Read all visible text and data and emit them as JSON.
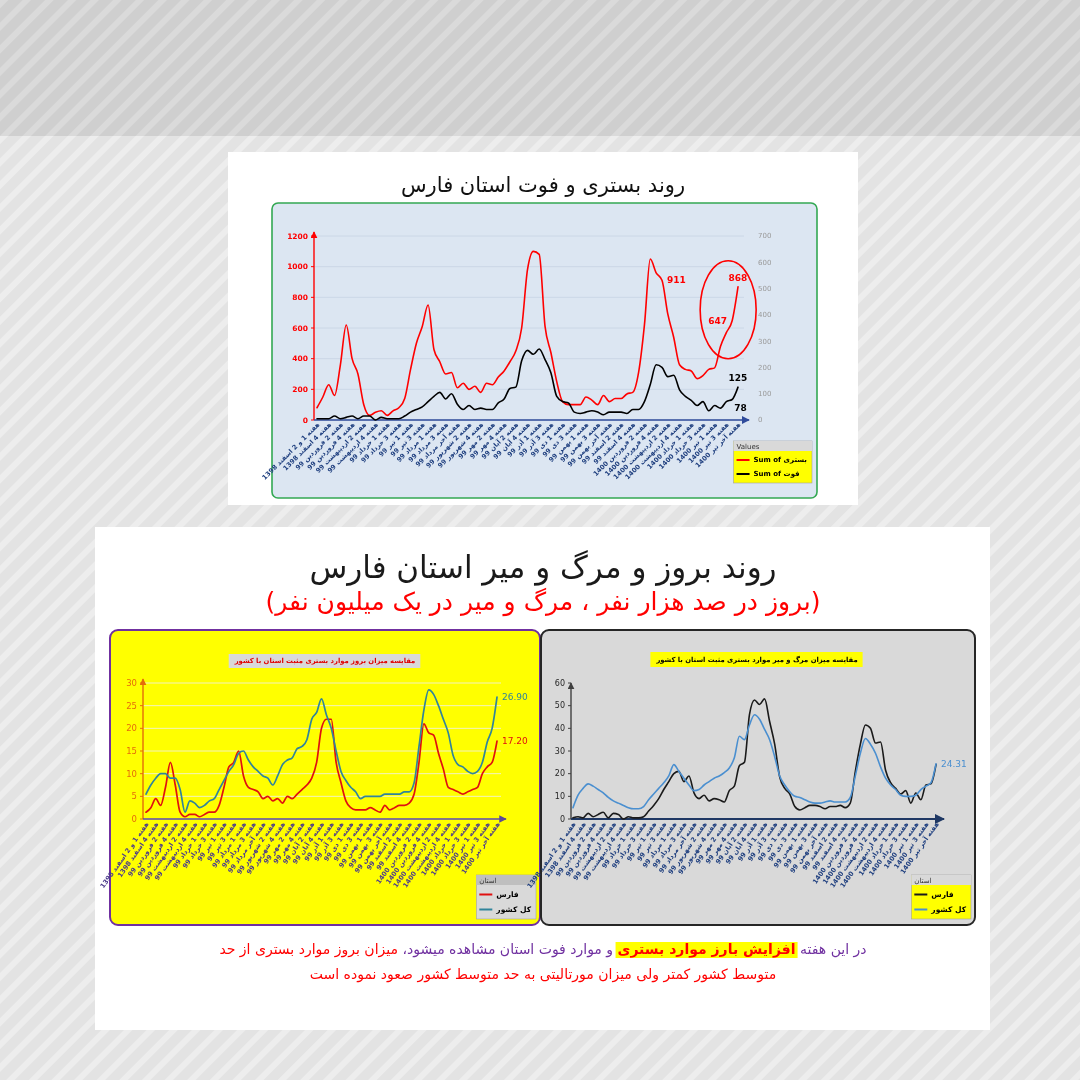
{
  "chart_data": [
    {
      "type": "line",
      "title": "روند بستری و فوت استان فارس",
      "categories": [
        "هفته 1 و 2 اسفند 1398",
        null,
        "هفته 4 اسفند 1398",
        null,
        "هفته 2 فروردین 99",
        null,
        "هفته 4 فروردین 99",
        null,
        "هفته 2 اردیبهشت 99",
        null,
        "هفته 4 اردیبهشت 99",
        null,
        "هفته 1 خرداد 99",
        null,
        "هفته 3 خرداد 99",
        null,
        "هفته 1 تیر 99",
        null,
        "هفته 3 تیر 99",
        null,
        "هفته 1 مرداد 99",
        null,
        "هفته 3 مرداد 99",
        null,
        "هفته آخر مرداد 99",
        null,
        "هفته 2 شهریور 99",
        null,
        "هفته 4 شهریور 99",
        null,
        "هفته 2 مهر 99",
        null,
        "هفته 4 مهر 99",
        null,
        "هفته 2 آبان 99",
        null,
        "هفته 4 آبان 99",
        null,
        "هفته 1 آذر 99",
        null,
        "هفته 3 آذر 99",
        null,
        "هفته 1 دی 99",
        null,
        "هفته 3 دی 99",
        null,
        "هفته 1 بهمن 99",
        null,
        "هفته 3 بهمن 99",
        null,
        "هفته آخر بهمن 99",
        null,
        "هفته 2 اسفند 99",
        null,
        "هفته 4 اسفند 99",
        null,
        "هفته 2 فروردین 1400",
        null,
        "هفته 4 فروردین 1400",
        null,
        "هفته 2 اردیبهشت 1400",
        null,
        "هفته 4 اردیبهشت 1400",
        null,
        "هفته 1 خرداد 1400",
        null,
        "هفته 3 خرداد 1400",
        null,
        "هفته 1 تیر 1400",
        null,
        "هفته 3 تیر 1400",
        null,
        "هفته آخر تیر 1400"
      ],
      "series": [
        {
          "name": "Sum of بستری",
          "color": "#ff0000",
          "values": [
            80,
            150,
            230,
            160,
            360,
            620,
            400,
            300,
            100,
            30,
            50,
            60,
            30,
            60,
            80,
            140,
            330,
            500,
            610,
            750,
            460,
            380,
            300,
            310,
            210,
            240,
            200,
            220,
            180,
            240,
            230,
            280,
            320,
            380,
            450,
            600,
            980,
            1100,
            1080,
            610,
            440,
            250,
            120,
            100,
            100,
            100,
            150,
            130,
            100,
            160,
            120,
            140,
            140,
            170,
            180,
            310,
            620,
            1050,
            960,
            911,
            690,
            540,
            360,
            330,
            320,
            270,
            290,
            330,
            340,
            480,
            570,
            647,
            868
          ],
          "value_labels": [
            null,
            null,
            null,
            null,
            null,
            null,
            null,
            null,
            null,
            null,
            null,
            null,
            null,
            null,
            null,
            null,
            null,
            null,
            null,
            null,
            null,
            null,
            null,
            null,
            null,
            null,
            null,
            null,
            null,
            null,
            null,
            null,
            null,
            null,
            null,
            null,
            null,
            null,
            null,
            null,
            null,
            null,
            null,
            null,
            null,
            null,
            null,
            null,
            null,
            null,
            null,
            null,
            null,
            null,
            null,
            null,
            null,
            null,
            null,
            "911",
            null,
            null,
            null,
            null,
            null,
            null,
            null,
            null,
            null,
            null,
            null,
            "647",
            "868"
          ]
        },
        {
          "name": "Sum of فوت",
          "color": "#000000",
          "axis": "y2",
          "values": [
            5,
            5,
            5,
            15,
            5,
            10,
            15,
            5,
            15,
            15,
            0,
            10,
            5,
            5,
            5,
            15,
            30,
            40,
            50,
            70,
            90,
            105,
            80,
            100,
            60,
            40,
            55,
            40,
            45,
            40,
            40,
            65,
            80,
            120,
            125,
            225,
            265,
            250,
            270,
            230,
            180,
            90,
            70,
            65,
            30,
            25,
            30,
            35,
            30,
            20,
            30,
            30,
            30,
            25,
            40,
            40,
            70,
            135,
            210,
            200,
            165,
            170,
            115,
            90,
            75,
            55,
            70,
            35,
            55,
            45,
            70,
            78,
            125
          ],
          "value_labels": [
            null,
            null,
            null,
            null,
            null,
            null,
            null,
            null,
            null,
            null,
            null,
            null,
            null,
            null,
            null,
            null,
            null,
            null,
            null,
            null,
            null,
            null,
            null,
            null,
            null,
            null,
            null,
            null,
            null,
            null,
            null,
            null,
            null,
            null,
            null,
            null,
            null,
            null,
            null,
            null,
            null,
            null,
            null,
            null,
            null,
            null,
            null,
            null,
            null,
            null,
            null,
            null,
            null,
            null,
            null,
            null,
            null,
            null,
            null,
            null,
            null,
            null,
            null,
            null,
            null,
            null,
            null,
            null,
            null,
            null,
            null,
            "78",
            "125"
          ]
        }
      ],
      "ylim": [
        0,
        1200
      ],
      "yticks": [
        0,
        200,
        400,
        600,
        800,
        1000,
        1200
      ],
      "y2lim": [
        0,
        700
      ],
      "y2ticks": [
        0,
        100,
        200,
        300,
        400,
        500,
        600,
        700
      ],
      "grid": "y",
      "legend": "bottom right",
      "legend_title": "Values",
      "line_style": "solid"
    },
    {
      "type": "other",
      "title": "روند بروز و مرگ و میر استان فارس",
      "subtitle": "(بروز در صد هزار نفر ، مرگ و میر در یک میلیون نفر)"
    },
    {
      "type": "line",
      "title": "مقایسه میزان بروز موارد بستری مثبت استان با کشور",
      "categories": [
        "هفته 1 و 2 اسفند 1398",
        null,
        "هفته 4 اسفند 1398",
        null,
        "هفته 2 فروردین 99",
        null,
        "هفته 4 فروردین 99",
        null,
        "هفته 2 اردیبهشت 99",
        null,
        "هفته 4 اردیبهشت 99",
        null,
        "هفته 1 خرداد 99",
        null,
        "هفته 3 خرداد 99",
        null,
        "هفته 1 تیر 99",
        null,
        "هفته 3 تیر 99",
        null,
        "هفته 1 مرداد 99",
        null,
        "هفته 3 مرداد 99",
        null,
        "هفته آخر مرداد 99",
        null,
        "هفته 2 شهریور 99",
        null,
        "هفته 4 شهریور 99",
        null,
        "هفته 2 مهر 99",
        null,
        "هفته 4 مهر 99",
        null,
        "هفته 2 آبان 99",
        null,
        "هفته 4 آبان 99",
        null,
        "هفته 1 آذر 99",
        null,
        "هفته 3 آذر 99",
        null,
        "هفته 1 دی 99",
        null,
        "هفته 3 دی 99",
        null,
        "هفته 1 بهمن 99",
        null,
        "هفته 3 بهمن 99",
        null,
        "هفته آخر بهمن 99",
        null,
        "هفته 2 اسفند 99",
        null,
        "هفته 4 اسفند 99",
        null,
        "هفته 2 فروردین 1400",
        null,
        "هفته 4 فروردین 1400",
        null,
        "هفته 2 اردیبهشت 1400",
        null,
        "هفته 4 اردیبهشت 1400",
        null,
        "هفته 1 خرداد 1400",
        null,
        "هفته 3 خرداد 1400",
        null,
        "هفته 1 تیر 1400",
        null,
        "هفته 3 تیر 1400",
        null,
        "هفته آخر تیر 1400"
      ],
      "series": [
        {
          "name": "فارس",
          "color": "#e01010",
          "values": [
            1.5,
            2.5,
            4.5,
            3,
            7,
            12.5,
            7.5,
            1.5,
            0.5,
            1,
            1,
            0.5,
            1,
            1.5,
            1.5,
            3,
            7,
            11.5,
            12.5,
            15,
            9.5,
            7,
            6.5,
            6,
            4.5,
            5,
            4,
            4.5,
            3.5,
            5,
            4.5,
            5.5,
            6.5,
            7.5,
            9,
            12.5,
            20,
            22,
            22,
            12.5,
            8,
            4,
            2.5,
            2,
            2,
            2,
            2.5,
            2,
            1.5,
            3,
            2,
            2.5,
            3,
            3,
            3.5,
            5.5,
            12.5,
            21,
            19,
            18.5,
            14.5,
            11,
            7,
            6.5,
            6,
            5.5,
            6,
            6.5,
            7,
            10,
            11.5,
            12.5,
            17.2
          ],
          "value_labels": [
            null,
            null,
            null,
            null,
            null,
            null,
            null,
            null,
            null,
            null,
            null,
            null,
            null,
            null,
            null,
            null,
            null,
            null,
            null,
            null,
            null,
            null,
            null,
            null,
            null,
            null,
            null,
            null,
            null,
            null,
            null,
            null,
            null,
            null,
            null,
            null,
            null,
            null,
            null,
            null,
            null,
            null,
            null,
            null,
            null,
            null,
            null,
            null,
            null,
            null,
            null,
            null,
            null,
            null,
            null,
            null,
            null,
            null,
            null,
            null,
            null,
            null,
            null,
            null,
            null,
            null,
            null,
            null,
            null,
            null,
            null,
            null,
            "17.20"
          ]
        },
        {
          "name": "کل کشور",
          "color": "#31849b",
          "values": [
            5.5,
            7.5,
            9,
            10,
            10,
            9,
            9,
            6.5,
            1.5,
            4,
            3.5,
            2.5,
            3,
            4,
            4.5,
            6.5,
            8.5,
            10.5,
            12,
            14.5,
            15,
            13,
            11.5,
            10.5,
            9.5,
            9,
            7.5,
            9.5,
            12,
            13,
            13.5,
            15.5,
            16,
            17.5,
            22,
            23.5,
            26.5,
            23,
            20,
            15,
            10.5,
            8.5,
            7,
            6,
            4.5,
            5,
            5,
            5,
            5,
            5.5,
            5.5,
            5.5,
            5.5,
            6,
            6,
            8,
            16,
            24,
            28.5,
            27.5,
            25,
            22,
            19,
            14,
            12,
            11.5,
            10.5,
            10,
            10.5,
            12.5,
            17,
            20,
            26.9
          ],
          "value_labels": [
            null,
            null,
            null,
            null,
            null,
            null,
            null,
            null,
            null,
            null,
            null,
            null,
            null,
            null,
            null,
            null,
            null,
            null,
            null,
            null,
            null,
            null,
            null,
            null,
            null,
            null,
            null,
            null,
            null,
            null,
            null,
            null,
            null,
            null,
            null,
            null,
            null,
            null,
            null,
            null,
            null,
            null,
            null,
            null,
            null,
            null,
            null,
            null,
            null,
            null,
            null,
            null,
            null,
            null,
            null,
            null,
            null,
            null,
            null,
            null,
            null,
            null,
            null,
            null,
            null,
            null,
            null,
            null,
            null,
            null,
            null,
            null,
            "26.90"
          ]
        }
      ],
      "ylim": [
        0,
        30
      ],
      "yticks": [
        0,
        5,
        10,
        15,
        20,
        25,
        30
      ],
      "grid": "y",
      "legend": "bottom right",
      "legend_title": "استان",
      "line_style": "solid"
    },
    {
      "type": "line",
      "title": "مقایسه میزان مرگ و میر موارد بستری مثبت استان با کشور",
      "categories": [
        "هفته 1 و 2 اسفند 1398",
        null,
        "هفته 4 اسفند 1398",
        null,
        "هفته 2 فروردین 99",
        null,
        "هفته 4 فروردین 99",
        null,
        "هفته 2 اردیبهشت 99",
        null,
        "هفته 4 اردیبهشت 99",
        null,
        "هفته 1 خرداد 99",
        null,
        "هفته 3 خرداد 99",
        null,
        "هفته 1 تیر 99",
        null,
        "هفته 3 تیر 99",
        null,
        "هفته 1 مرداد 99",
        null,
        "هفته 3 مرداد 99",
        null,
        "هفته آخر مرداد 99",
        null,
        "هفته 2 شهریور 99",
        null,
        "هفته 4 شهریور 99",
        null,
        "هفته 2 مهر 99",
        null,
        "هفته 4 مهر 99",
        null,
        "هفته 2 آبان 99",
        null,
        "هفته 4 آبان 99",
        null,
        "هفته 1 آذر 99",
        null,
        "هفته 3 آذر 99",
        null,
        "هفته 1 دی 99",
        null,
        "هفته 3 دی 99",
        null,
        "هفته 1 بهمن 99",
        null,
        "هفته 3 بهمن 99",
        null,
        "هفته آخر بهمن 99",
        null,
        "هفته 2 اسفند 99",
        null,
        "هفته 4 اسفند 99",
        null,
        "هفته 2 فروردین 1400",
        null,
        "هفته 4 فروردین 1400",
        null,
        "هفته 2 اردیبهشت 1400",
        null,
        "هفته 4 اردیبهشت 1400",
        null,
        "هفته 1 خرداد 1400",
        null,
        "هفته 3 خرداد 1400",
        null,
        "هفته 1 تیر 1400",
        null,
        "هفته 3 تیر 1400",
        null,
        "هفته آخر تیر 1400"
      ],
      "series": [
        {
          "name": "فارس",
          "color": "#1a1a1a",
          "values": [
            0.5,
            1,
            0.5,
            2.5,
            1,
            2,
            3,
            0.5,
            2.5,
            2,
            0,
            1,
            0.5,
            0.5,
            1,
            3.5,
            6,
            9,
            13,
            16.5,
            20,
            21,
            16.5,
            19,
            11.5,
            9,
            10.5,
            8,
            9,
            8.5,
            7.5,
            12.5,
            14.5,
            23.5,
            25,
            46,
            52.5,
            50.5,
            53,
            43,
            33,
            18.5,
            13.5,
            11,
            5.5,
            4,
            5,
            6,
            6,
            5.5,
            4.5,
            5.5,
            5.5,
            6,
            5,
            7,
            21,
            33,
            41.5,
            40,
            33.5,
            34,
            21.5,
            16,
            13.5,
            11,
            12.5,
            7,
            11.5,
            8.5,
            15,
            15.5,
            24
          ]
        },
        {
          "name": "کل کشور",
          "color": "#4a8fd0",
          "values": [
            5,
            10.5,
            13.5,
            15.5,
            14.5,
            13,
            11.5,
            9.5,
            8,
            7,
            6,
            5,
            4.5,
            4.5,
            5.5,
            8.5,
            11,
            13.5,
            16,
            19,
            24,
            21,
            18,
            15,
            12.5,
            13,
            15,
            16.5,
            18,
            19,
            20.5,
            22.5,
            27,
            36.5,
            35,
            41.5,
            46,
            44,
            39.5,
            35,
            27.5,
            19,
            15,
            12,
            10,
            9.5,
            8.5,
            7.5,
            7,
            7,
            7.5,
            8,
            7.5,
            7.5,
            7.5,
            9.5,
            19,
            29,
            35.5,
            33,
            29,
            23,
            18,
            15,
            13,
            10.5,
            10,
            10,
            10.5,
            13,
            14.5,
            16,
            24.31
          ],
          "value_labels": [
            null,
            null,
            null,
            null,
            null,
            null,
            null,
            null,
            null,
            null,
            null,
            null,
            null,
            null,
            null,
            null,
            null,
            null,
            null,
            null,
            null,
            null,
            null,
            null,
            null,
            null,
            null,
            null,
            null,
            null,
            null,
            null,
            null,
            null,
            null,
            null,
            null,
            null,
            null,
            null,
            null,
            null,
            null,
            null,
            null,
            null,
            null,
            null,
            null,
            null,
            null,
            null,
            null,
            null,
            null,
            null,
            null,
            null,
            null,
            null,
            null,
            null,
            null,
            null,
            null,
            null,
            null,
            null,
            null,
            null,
            null,
            null,
            "24.31"
          ]
        }
      ],
      "ylim": [
        0,
        60
      ],
      "yticks": [
        0,
        10,
        20,
        30,
        40,
        50,
        60
      ],
      "legend": "bottom right",
      "legend_title": "استان",
      "line_style": "solid"
    },
    {
      "type": "other",
      "annotations": [
        "در این هفته",
        "افزایش بارز موارد بستری",
        "و موارد فوت استان مشاهده میشود،",
        "میزان بروز موارد بستری از حد",
        "متوسط کشور کمتر ولی میزان مورتالیتی به حد متوسط کشور صعود نموده است"
      ]
    }
  ]
}
